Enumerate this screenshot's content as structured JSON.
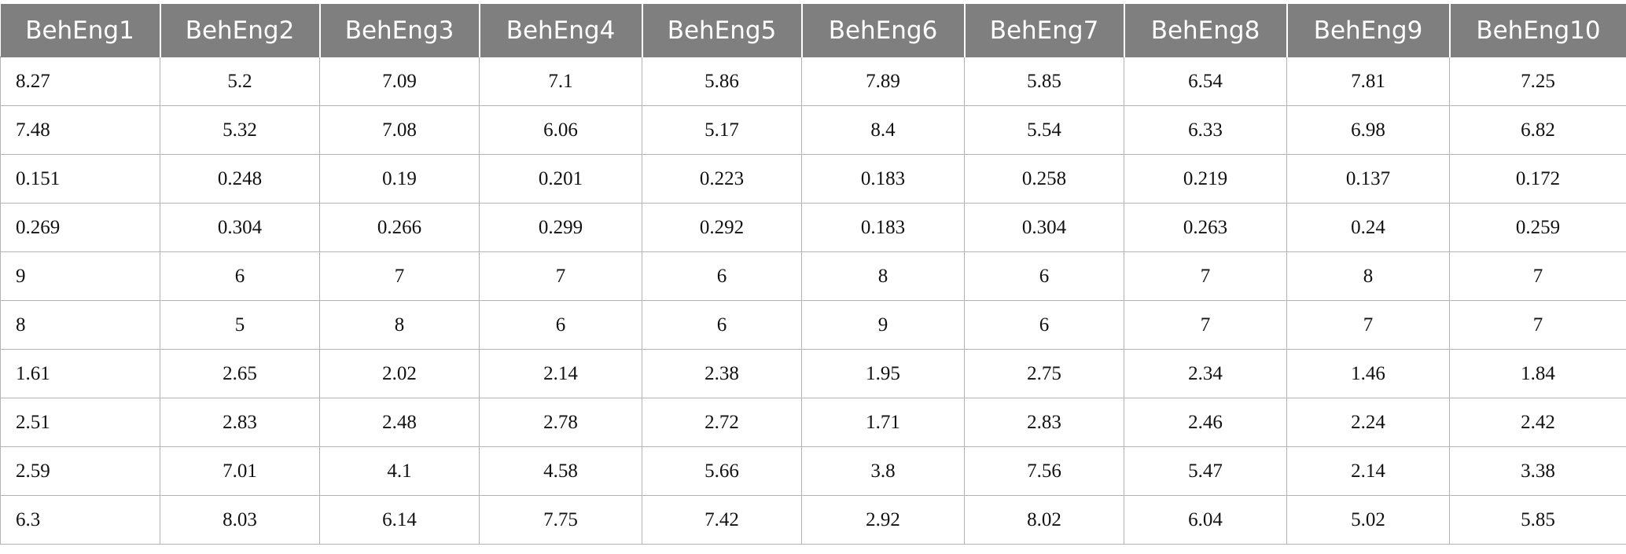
{
  "table": {
    "headers": [
      "BehEng1",
      "BehEng2",
      "BehEng3",
      "BehEng4",
      "BehEng5",
      "BehEng6",
      "BehEng7",
      "BehEng8",
      "BehEng9",
      "BehEng10"
    ],
    "rows": [
      [
        "8.27",
        "5.2",
        "7.09",
        "7.1",
        "5.86",
        "7.89",
        "5.85",
        "6.54",
        "7.81",
        "7.25"
      ],
      [
        "7.48",
        "5.32",
        "7.08",
        "6.06",
        "5.17",
        "8.4",
        "5.54",
        "6.33",
        "6.98",
        "6.82"
      ],
      [
        "0.151",
        "0.248",
        "0.19",
        "0.201",
        "0.223",
        "0.183",
        "0.258",
        "0.219",
        "0.137",
        "0.172"
      ],
      [
        "0.269",
        "0.304",
        "0.266",
        "0.299",
        "0.292",
        "0.183",
        "0.304",
        "0.263",
        "0.24",
        "0.259"
      ],
      [
        "9",
        "6",
        "7",
        "7",
        "6",
        "8",
        "6",
        "7",
        "8",
        "7"
      ],
      [
        "8",
        "5",
        "8",
        "6",
        "6",
        "9",
        "6",
        "7",
        "7",
        "7"
      ],
      [
        "1.61",
        "2.65",
        "2.02",
        "2.14",
        "2.38",
        "1.95",
        "2.75",
        "2.34",
        "1.46",
        "1.84"
      ],
      [
        "2.51",
        "2.83",
        "2.48",
        "2.78",
        "2.72",
        "1.71",
        "2.83",
        "2.46",
        "2.24",
        "2.42"
      ],
      [
        "2.59",
        "7.01",
        "4.1",
        "4.58",
        "5.66",
        "3.8",
        "7.56",
        "5.47",
        "2.14",
        "3.38"
      ],
      [
        "6.3",
        "8.03",
        "6.14",
        "7.75",
        "7.42",
        "2.92",
        "8.02",
        "6.04",
        "5.02",
        "5.85"
      ]
    ]
  },
  "colors": {
    "header_bg": "#7f7f7f",
    "header_text": "#ffffff",
    "grid_line": "#b3b3b3"
  }
}
